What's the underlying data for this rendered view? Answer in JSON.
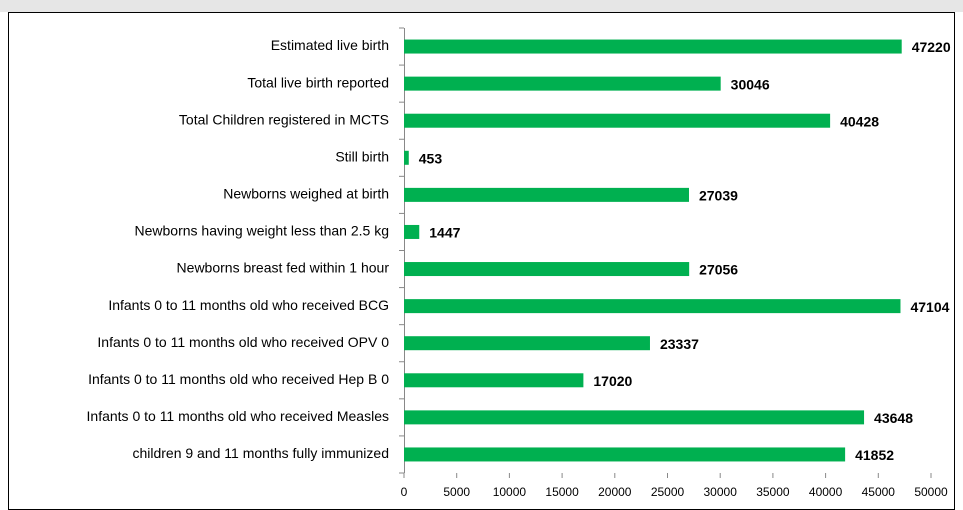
{
  "chart_data": {
    "type": "bar",
    "orientation": "horizontal",
    "categories": [
      "Estimated live birth",
      "Total live birth reported",
      "Total Children registered in MCTS",
      "Still birth",
      "Newborns weighed at birth",
      "Newborns having weight less than 2.5 kg",
      "Newborns breast fed within 1 hour",
      "Infants 0 to 11 months old who received BCG",
      "Infants 0 to 11 months old who received OPV 0",
      "Infants 0 to 11 months old who received Hep B 0",
      "Infants 0 to 11 months old who received Measles",
      "children 9 and 11 months fully immunized"
    ],
    "values": [
      47220,
      30046,
      40428,
      453,
      27039,
      1447,
      27056,
      47104,
      23337,
      17020,
      43648,
      41852
    ],
    "color": "#00b050",
    "xlim": [
      0,
      50000
    ],
    "xticks": [
      0,
      5000,
      10000,
      15000,
      20000,
      25000,
      30000,
      35000,
      40000,
      45000,
      50000
    ],
    "grid": false
  }
}
